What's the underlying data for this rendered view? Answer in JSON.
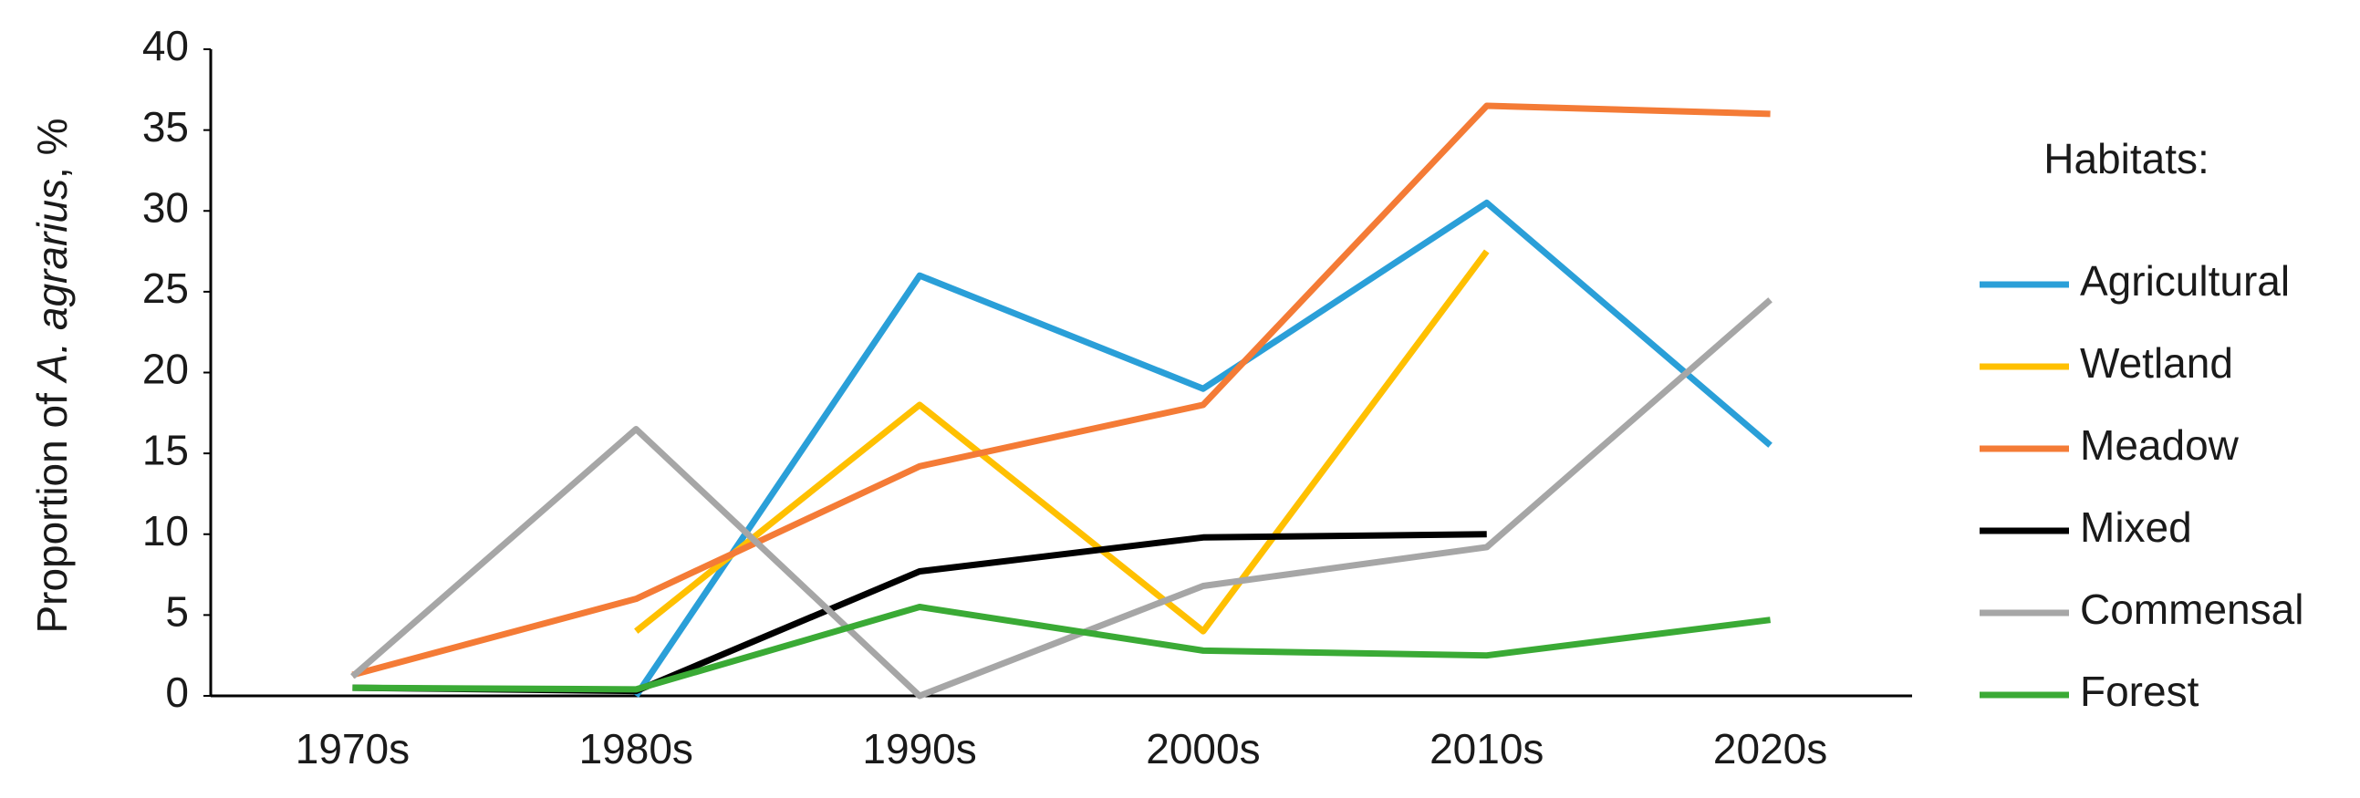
{
  "chart_data": {
    "type": "line",
    "y_label": [
      "Proportion of ",
      "A. agrarius",
      ", %"
    ],
    "legend_title": "Habitats:",
    "legend": "right",
    "categories": [
      "1970s",
      "1980s",
      "1990s",
      "2000s",
      "2010s",
      "2020s"
    ],
    "ylim": [
      0,
      40
    ],
    "yticks": [
      0,
      5,
      10,
      15,
      20,
      25,
      30,
      35,
      40
    ],
    "grid": false,
    "series": [
      {
        "name": "Agricultural",
        "color": "#2a9fd8",
        "values": [
          null,
          0,
          26,
          19,
          30.5,
          15.5
        ]
      },
      {
        "name": "Wetland",
        "color": "#ffc000",
        "values": [
          null,
          4,
          18,
          4,
          27.5,
          null
        ]
      },
      {
        "name": "Meadow",
        "color": "#f47b36",
        "values": [
          1.3,
          6,
          14.2,
          18,
          36.5,
          36
        ]
      },
      {
        "name": "Mixed",
        "color": "#000000",
        "values": [
          0.5,
          0.3,
          7.7,
          9.8,
          10,
          null
        ]
      },
      {
        "name": "Commensal",
        "color": "#a6a6a6",
        "values": [
          1.2,
          16.5,
          0,
          6.8,
          9.2,
          24.5
        ]
      },
      {
        "name": "Forest",
        "color": "#3aaa35",
        "values": [
          0.5,
          0.4,
          5.5,
          2.8,
          2.5,
          4.7
        ]
      }
    ]
  }
}
